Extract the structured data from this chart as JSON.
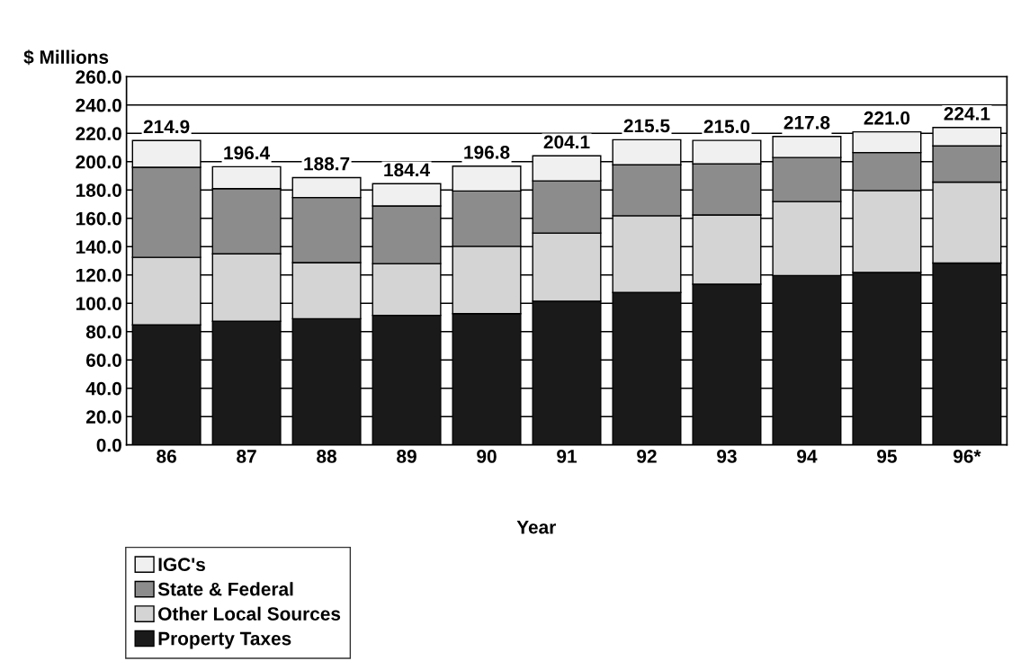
{
  "chart_data": {
    "type": "bar",
    "stacked": true,
    "ylabel": "$ Millions",
    "xlabel": "Year",
    "categories": [
      "86",
      "87",
      "88",
      "89",
      "90",
      "91",
      "92",
      "93",
      "94",
      "95",
      "96*"
    ],
    "series": [
      {
        "name": "Property Taxes",
        "color": "#1a1a1a",
        "values": [
          84.7,
          87.3,
          89.1,
          91.5,
          92.7,
          101.5,
          107.6,
          113.5,
          119.6,
          121.8,
          128.4
        ]
      },
      {
        "name": "Other Local Sources",
        "color": "#d4d4d4",
        "values": [
          47.7,
          47.6,
          39.6,
          36.5,
          47.5,
          48.1,
          54.2,
          48.9,
          52.2,
          57.8,
          57.1
        ]
      },
      {
        "name": "State & Federal",
        "color": "#8c8c8c",
        "values": [
          63.6,
          46.0,
          46.0,
          40.7,
          39.1,
          36.8,
          36.0,
          36.1,
          31.1,
          26.8,
          25.6
        ]
      },
      {
        "name": "IGC's",
        "color": "#f0f0f0",
        "values": [
          18.9,
          15.5,
          14.0,
          15.7,
          17.5,
          17.7,
          17.7,
          16.5,
          14.9,
          14.6,
          13.0
        ]
      }
    ],
    "totals": [
      "214.9",
      "196.4",
      "188.7",
      "184.4",
      "196.8",
      "204.1",
      "215.5",
      "215.0",
      "217.8",
      "221.0",
      "224.1"
    ],
    "ylim": [
      0,
      260
    ],
    "yticks": [
      {
        "value": 0,
        "label": "0.0"
      },
      {
        "value": 20,
        "label": "20.0"
      },
      {
        "value": 40,
        "label": "40.0"
      },
      {
        "value": 60,
        "label": "60.0"
      },
      {
        "value": 80,
        "label": "80.0"
      },
      {
        "value": 100,
        "label": "100.0"
      },
      {
        "value": 120,
        "label": "120.0"
      },
      {
        "value": 140,
        "label": "140.0"
      },
      {
        "value": 160,
        "label": "160.0"
      },
      {
        "value": 180,
        "label": "180.0"
      },
      {
        "value": 200,
        "label": "200.0"
      },
      {
        "value": 220,
        "label": "220.0"
      },
      {
        "value": 240,
        "label": "240.0"
      },
      {
        "value": 260,
        "label": "260.0"
      }
    ],
    "grid": "y",
    "legend": "bottom left"
  }
}
